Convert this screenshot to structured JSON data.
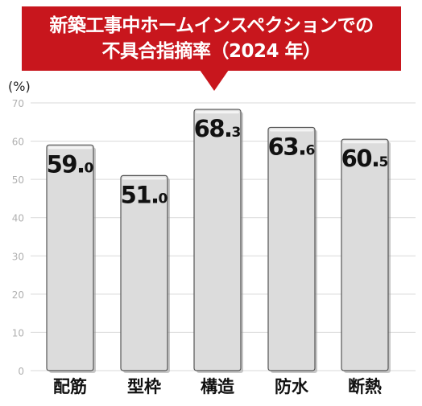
{
  "chart_data": {
    "type": "bar",
    "title_lines": [
      "新築工事中ホームインスペクションでの",
      "不具合指摘率（2024 年）"
    ],
    "unit": "(%)",
    "categories": [
      "配筋",
      "型枠",
      "構造",
      "防水",
      "断熱"
    ],
    "values": [
      59.0,
      51.0,
      68.3,
      63.6,
      60.5
    ],
    "value_labels": [
      {
        "int": "59.",
        "dec": "0"
      },
      {
        "int": "51.",
        "dec": "0"
      },
      {
        "int": "68.",
        "dec": "3"
      },
      {
        "int": "63.",
        "dec": "6"
      },
      {
        "int": "60.",
        "dec": "5"
      }
    ],
    "ylim": [
      0,
      70
    ],
    "y_ticks": [
      "0",
      "10",
      "20",
      "30",
      "40",
      "50",
      "60",
      "70"
    ],
    "grid": true,
    "colors": {
      "title_bg": "#c8161d",
      "bar_fill": "#dcdcdc",
      "bar_edge": "#555555",
      "grid": "#d9d9d9",
      "tick_text": "#b0b0b0"
    }
  }
}
